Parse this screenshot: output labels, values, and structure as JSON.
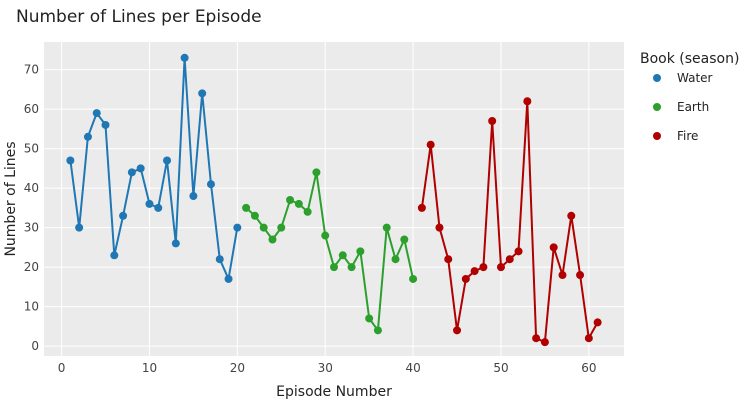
{
  "chart_data": {
    "type": "line",
    "title": "Number of Lines per Episode",
    "xlabel": "Episode Number",
    "ylabel": "Number of Lines",
    "xlim": [
      -2,
      64
    ],
    "ylim": [
      -2.5,
      77
    ],
    "xticks": [
      0,
      10,
      20,
      30,
      40,
      50,
      60
    ],
    "yticks": [
      0,
      10,
      20,
      30,
      40,
      50,
      60,
      70
    ],
    "grid": true,
    "legend_title": "Book (season)",
    "legend_position": "right",
    "series": [
      {
        "name": "Water",
        "color": "#1f77b4",
        "x": [
          1,
          2,
          3,
          4,
          5,
          6,
          7,
          8,
          9,
          10,
          11,
          12,
          13,
          14,
          15,
          16,
          17,
          18,
          19,
          20
        ],
        "y": [
          47,
          30,
          53,
          59,
          56,
          23,
          33,
          44,
          45,
          36,
          35,
          47,
          26,
          73,
          38,
          64,
          41,
          22,
          17,
          30
        ]
      },
      {
        "name": "Earth",
        "color": "#2ca02c",
        "x": [
          21,
          22,
          23,
          24,
          25,
          26,
          27,
          28,
          29,
          30,
          31,
          32,
          33,
          34,
          35,
          36,
          37,
          38,
          39,
          40
        ],
        "y": [
          35,
          33,
          30,
          27,
          30,
          37,
          36,
          34,
          44,
          28,
          20,
          23,
          20,
          24,
          7,
          4,
          30,
          22,
          27,
          17
        ]
      },
      {
        "name": "Fire",
        "color": "#b00000",
        "x": [
          41,
          42,
          43,
          44,
          45,
          46,
          47,
          48,
          49,
          50,
          51,
          52,
          53,
          54,
          55,
          56,
          57,
          58,
          59,
          60,
          61
        ],
        "y": [
          35,
          51,
          30,
          22,
          4,
          17,
          19,
          20,
          57,
          20,
          22,
          24,
          62,
          2,
          1,
          25,
          18,
          33,
          18,
          2,
          6
        ]
      }
    ]
  }
}
